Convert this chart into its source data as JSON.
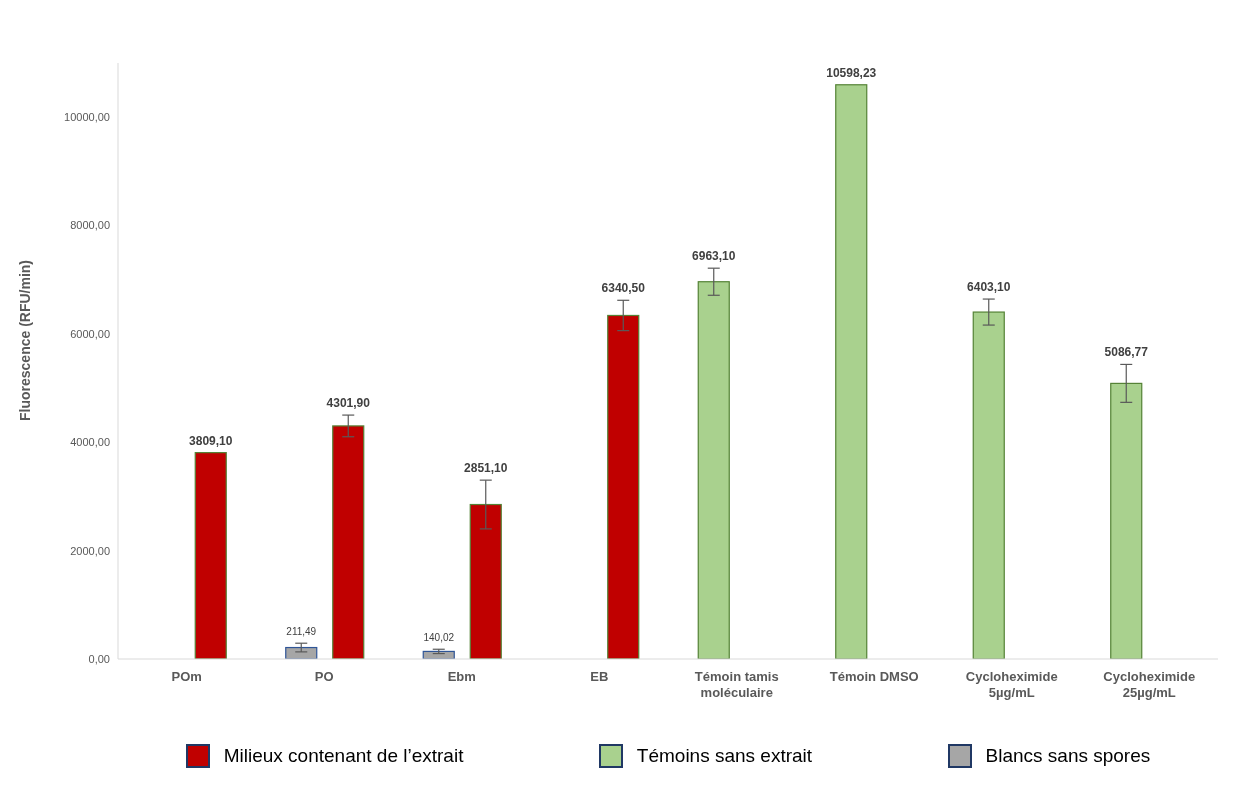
{
  "chart_data": {
    "type": "bar",
    "ylabel": "Fluorescence (RFU/min)",
    "categories": [
      "POm",
      "PO",
      "Ebm",
      "EB",
      "Témoin tamis moléculaire",
      "Témoin DMSO",
      "Cycloheximide 5µg/mL",
      "Cycloheximide 25µg/mL"
    ],
    "series": [
      {
        "name": "Milieux contenant de l’extrait",
        "color": "#c00000",
        "values": [
          3809.1,
          4301.9,
          2851.1,
          6340.5,
          null,
          null,
          null,
          null
        ],
        "errors": [
          null,
          200,
          450,
          280,
          null,
          null,
          null,
          null
        ],
        "value_labels": [
          "3809,10",
          "4301,90",
          "2851,10",
          "6340,50",
          null,
          null,
          null,
          null
        ]
      },
      {
        "name": "Témoins sans extrait",
        "color": "#a9d18e",
        "values": [
          null,
          null,
          null,
          null,
          6963.1,
          10598.23,
          6403.1,
          5086.77
        ],
        "errors": [
          null,
          null,
          null,
          null,
          250,
          null,
          240,
          350
        ],
        "value_labels": [
          null,
          null,
          null,
          null,
          "6963,10",
          "10598,23",
          "6403,10",
          "5086,77"
        ]
      },
      {
        "name": "Blancs sans spores",
        "color": "#a6a6a6",
        "values": [
          null,
          211.49,
          140.02,
          null,
          null,
          null,
          null,
          null
        ],
        "errors": [
          null,
          80,
          40,
          null,
          null,
          null,
          null,
          null
        ],
        "value_labels": [
          null,
          "211,49",
          "140,02",
          null,
          null,
          null,
          null,
          null
        ]
      }
    ],
    "ylim": [
      0,
      11000
    ],
    "yticks": [
      {
        "value": 0,
        "label": "0,00"
      },
      {
        "value": 2000,
        "label": "2000,00"
      },
      {
        "value": 4000,
        "label": "4000,00"
      },
      {
        "value": 6000,
        "label": "6000,00"
      },
      {
        "value": 8000,
        "label": "8000,00"
      },
      {
        "value": 10000,
        "label": "10000,00"
      }
    ],
    "grid": false,
    "legend": "bottom"
  }
}
